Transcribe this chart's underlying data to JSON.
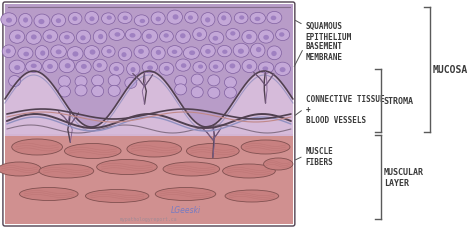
{
  "figure_bg": "#ffffff",
  "epithelium_fill": "#b89cc8",
  "epithelium_cell_face": "#c4a8d8",
  "epithelium_cell_edge": "#8060a0",
  "epithelium_cell_nucleus": "#9070b8",
  "stroma_color": "#d4b8d8",
  "stroma_deep_color": "#c8a8cc",
  "vessel_line1": "#7070a0",
  "vessel_line2": "#c07878",
  "muscle_bg": "#d09090",
  "muscle_fiber_face": "#c88080",
  "muscle_fiber_stripe": "#b87070",
  "muscle_fiber_edge": "#805050",
  "outline_color": "#504050",
  "label_color": "#3a3a3a",
  "label_fontsize": 5.5,
  "bracket_color": "#5a5a5a",
  "watermark": "mypathologyreport.ca",
  "labels": {
    "squamous_epithelium": "SQUAMOUS\nEPITHELIUM",
    "basement_membrane": "BASEMENT\nMEMBRANE",
    "connective_tissue": "CONNECTIVE TISSUE\n+\nBLOOD VESSELS",
    "muscle_fibers": "MUSCLE\nFIBERS",
    "mucosa": "MUCOSA",
    "stroma": "STROMA",
    "muscular_layer": "MUSCULAR\nLAYER"
  }
}
